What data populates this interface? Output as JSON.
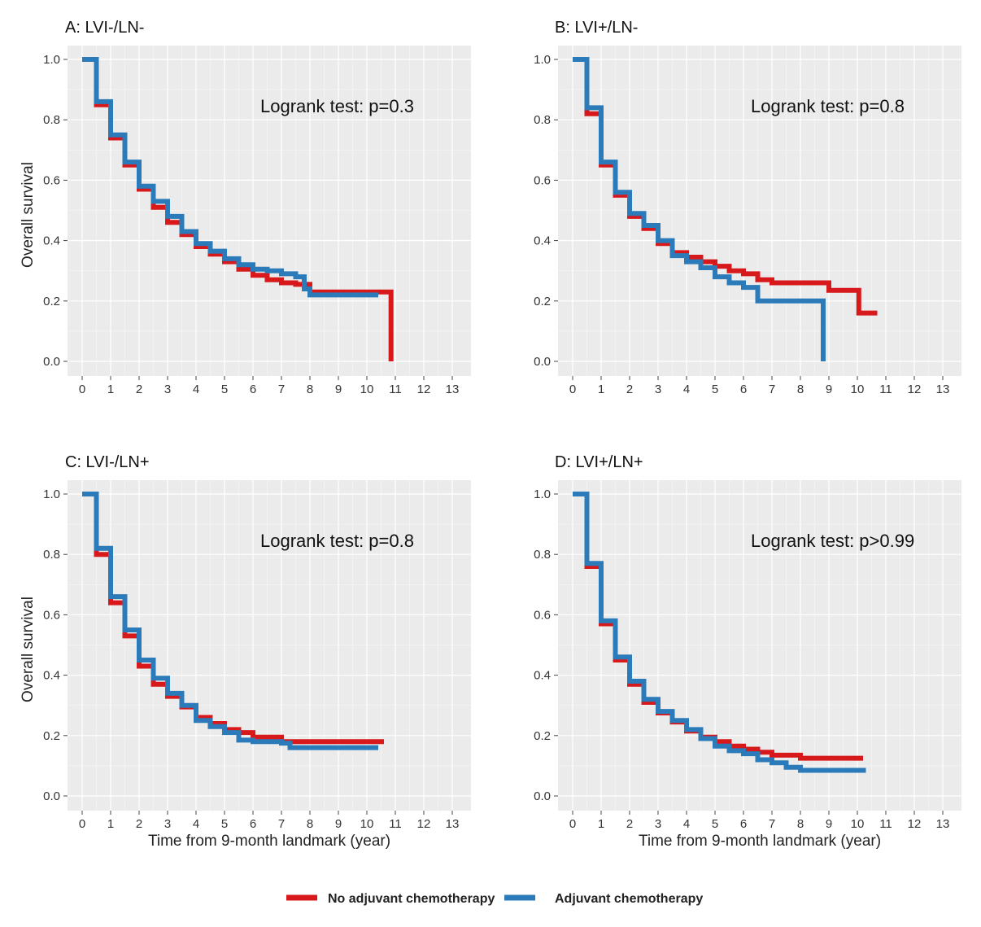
{
  "colors": {
    "no_chemo": "#d7191c",
    "chemo": "#2b7bba"
  },
  "legend": {
    "items": [
      {
        "label": "No adjuvant chemotherapy",
        "color": "#d7191c"
      },
      {
        "label": "Adjuvant chemotherapy",
        "color": "#2b7bba"
      }
    ]
  },
  "chart_data": [
    {
      "type": "line",
      "title": "A: LVI-/LN-",
      "annotation": "Logrank test: p=0.3",
      "xlabel": "",
      "ylabel": "Overall survival",
      "xlim": [
        0,
        13
      ],
      "ylim": [
        0,
        1
      ],
      "x_ticks": [
        "0",
        "1",
        "2",
        "3",
        "4",
        "5",
        "6",
        "7",
        "8",
        "9",
        "10",
        "11",
        "12",
        "13"
      ],
      "y_ticks": [
        "0.0",
        "0.2",
        "0.4",
        "0.6",
        "0.8",
        "1.0"
      ],
      "series": [
        {
          "name": "No adjuvant chemotherapy",
          "x": [
            0,
            0.5,
            1,
            1.5,
            2,
            2.5,
            3,
            3.5,
            4,
            4.5,
            5,
            5.5,
            6,
            6.5,
            7,
            7.5,
            8,
            9,
            10,
            10.85,
            10.85
          ],
          "y": [
            1.0,
            0.85,
            0.74,
            0.65,
            0.57,
            0.51,
            0.46,
            0.42,
            0.38,
            0.355,
            0.33,
            0.305,
            0.285,
            0.27,
            0.26,
            0.255,
            0.23,
            0.23,
            0.23,
            0.23,
            0.0
          ]
        },
        {
          "name": "Adjuvant chemotherapy",
          "x": [
            0,
            0.5,
            1,
            1.5,
            2,
            2.5,
            3,
            3.5,
            4,
            4.5,
            5,
            5.5,
            6,
            6.5,
            7,
            7.5,
            7.8,
            8,
            9,
            10,
            10.4
          ],
          "y": [
            1.0,
            0.86,
            0.75,
            0.66,
            0.58,
            0.53,
            0.48,
            0.43,
            0.39,
            0.365,
            0.34,
            0.32,
            0.305,
            0.3,
            0.29,
            0.28,
            0.24,
            0.22,
            0.22,
            0.22,
            0.22
          ]
        }
      ]
    },
    {
      "type": "line",
      "title": "B: LVI+/LN-",
      "annotation": "Logrank test: p=0.8",
      "xlabel": "",
      "ylabel": "",
      "xlim": [
        0,
        13
      ],
      "ylim": [
        0,
        1
      ],
      "x_ticks": [
        "0",
        "1",
        "2",
        "3",
        "4",
        "5",
        "6",
        "7",
        "8",
        "9",
        "10",
        "11",
        "12",
        "13"
      ],
      "y_ticks": [
        "0.0",
        "0.2",
        "0.4",
        "0.6",
        "0.8",
        "1.0"
      ],
      "series": [
        {
          "name": "No adjuvant chemotherapy",
          "x": [
            0,
            0.5,
            1,
            1.5,
            2,
            2.5,
            3,
            3.5,
            4,
            4.5,
            5,
            5.5,
            6,
            6.5,
            7,
            8,
            8.9,
            9,
            10,
            10.05,
            10.7
          ],
          "y": [
            1.0,
            0.82,
            0.65,
            0.55,
            0.48,
            0.44,
            0.39,
            0.36,
            0.345,
            0.33,
            0.315,
            0.3,
            0.29,
            0.27,
            0.26,
            0.26,
            0.26,
            0.235,
            0.235,
            0.16,
            0.16
          ]
        },
        {
          "name": "Adjuvant chemotherapy",
          "x": [
            0,
            0.5,
            1,
            1.5,
            2,
            2.5,
            3,
            3.5,
            4,
            4.5,
            5,
            5.5,
            6,
            6.5,
            7,
            8,
            8.8,
            8.8
          ],
          "y": [
            1.0,
            0.84,
            0.66,
            0.56,
            0.49,
            0.45,
            0.4,
            0.35,
            0.33,
            0.31,
            0.28,
            0.26,
            0.245,
            0.2,
            0.2,
            0.2,
            0.2,
            0.0
          ]
        }
      ]
    },
    {
      "type": "line",
      "title": "C: LVI-/LN+",
      "annotation": "Logrank test: p=0.8",
      "xlabel": "Time from 9-month landmark (year)",
      "ylabel": "Overall survival",
      "xlim": [
        0,
        13
      ],
      "ylim": [
        0,
        1
      ],
      "x_ticks": [
        "0",
        "1",
        "2",
        "3",
        "4",
        "5",
        "6",
        "7",
        "8",
        "9",
        "10",
        "11",
        "12",
        "13"
      ],
      "y_ticks": [
        "0.0",
        "0.2",
        "0.4",
        "0.6",
        "0.8",
        "1.0"
      ],
      "series": [
        {
          "name": "No adjuvant chemotherapy",
          "x": [
            0,
            0.5,
            1,
            1.5,
            2,
            2.5,
            3,
            3.5,
            4,
            4.5,
            5,
            5.5,
            6,
            7,
            8,
            9,
            10,
            10.6
          ],
          "y": [
            1.0,
            0.8,
            0.64,
            0.53,
            0.43,
            0.37,
            0.33,
            0.295,
            0.26,
            0.24,
            0.22,
            0.21,
            0.195,
            0.18,
            0.18,
            0.18,
            0.18,
            0.18
          ]
        },
        {
          "name": "Adjuvant chemotherapy",
          "x": [
            0,
            0.5,
            1,
            1.5,
            2,
            2.5,
            3,
            3.5,
            4,
            4.5,
            5,
            5.5,
            6,
            7,
            7.3,
            8,
            9,
            10,
            10.4
          ],
          "y": [
            1.0,
            0.82,
            0.66,
            0.55,
            0.45,
            0.39,
            0.34,
            0.3,
            0.25,
            0.23,
            0.21,
            0.185,
            0.18,
            0.175,
            0.16,
            0.16,
            0.16,
            0.16,
            0.16
          ]
        }
      ]
    },
    {
      "type": "line",
      "title": "D: LVI+/LN+",
      "annotation": "Logrank test: p>0.99",
      "xlabel": "Time from 9-month landmark (year)",
      "ylabel": "",
      "xlim": [
        0,
        13
      ],
      "ylim": [
        0,
        1
      ],
      "x_ticks": [
        "0",
        "1",
        "2",
        "3",
        "4",
        "5",
        "6",
        "7",
        "8",
        "9",
        "10",
        "11",
        "12",
        "13"
      ],
      "y_ticks": [
        "0.0",
        "0.2",
        "0.4",
        "0.6",
        "0.8",
        "1.0"
      ],
      "series": [
        {
          "name": "No adjuvant chemotherapy",
          "x": [
            0,
            0.5,
            1,
            1.5,
            2,
            2.5,
            3,
            3.5,
            4,
            4.5,
            5,
            5.5,
            6,
            6.5,
            7,
            8,
            9,
            10,
            10.2
          ],
          "y": [
            1.0,
            0.76,
            0.57,
            0.45,
            0.37,
            0.31,
            0.275,
            0.245,
            0.215,
            0.195,
            0.18,
            0.165,
            0.155,
            0.145,
            0.135,
            0.125,
            0.125,
            0.125,
            0.125
          ]
        },
        {
          "name": "Adjuvant chemotherapy",
          "x": [
            0,
            0.5,
            1,
            1.5,
            2,
            2.5,
            3,
            3.5,
            4,
            4.5,
            5,
            5.5,
            6,
            6.5,
            7,
            7.5,
            8,
            9,
            10,
            10.3
          ],
          "y": [
            1.0,
            0.77,
            0.58,
            0.46,
            0.38,
            0.32,
            0.28,
            0.25,
            0.22,
            0.19,
            0.165,
            0.15,
            0.14,
            0.12,
            0.11,
            0.095,
            0.085,
            0.085,
            0.085,
            0.085
          ]
        }
      ]
    }
  ]
}
